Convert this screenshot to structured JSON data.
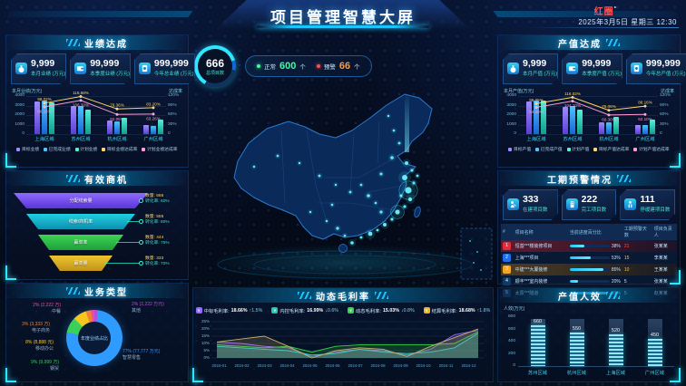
{
  "header": {
    "title": "项目管理智慧大屏",
    "logo": "红圈",
    "logo_sup": "°",
    "datetime": "2025年3月5日 星期三 12:30"
  },
  "overview": {
    "total": "666",
    "total_label": "总项目数",
    "normal_label": "正常",
    "normal_value": "600",
    "normal_unit": "个",
    "warning_label": "预警",
    "warning_value": "66",
    "warning_unit": "个"
  },
  "panels": {
    "performance": {
      "title": "业绩达成",
      "cards": [
        {
          "icon": "money-bag-icon",
          "value": "9,999",
          "label": "本月业绩 (万元)"
        },
        {
          "icon": "wallet-icon",
          "value": "99,999",
          "label": "本季度业绩 (万元)"
        },
        {
          "icon": "safe-icon",
          "value": "999,999",
          "label": "今年总业绩 (万元)"
        }
      ]
    },
    "opportunity": {
      "title": "有效商机"
    },
    "business": {
      "title": "业务类型"
    },
    "output": {
      "title": "产值达成",
      "cards": [
        {
          "icon": "money-bag-icon",
          "value": "9,999",
          "label": "本月产值 (万元)"
        },
        {
          "icon": "wallet-icon",
          "value": "99,999",
          "label": "本季度产值 (万元)"
        },
        {
          "icon": "safe-icon",
          "value": "999,999",
          "label": "今年总产值 (万元)"
        }
      ]
    },
    "schedule": {
      "title": "工期预警情况",
      "cards": [
        {
          "icon": "worker-icon",
          "value": "333",
          "label": "在建项目数"
        },
        {
          "icon": "building-icon",
          "value": "222",
          "label": "完工项目数"
        },
        {
          "icon": "pause-icon",
          "value": "111",
          "label": "停缓建项目数"
        }
      ],
      "table": {
        "headers": [
          "#",
          "项目名称",
          "当前进度百分比",
          "工期预警天数",
          "项目负责人"
        ],
        "rows": [
          {
            "no": "1",
            "name": "恒基***楼装修项目",
            "progress": 38,
            "progress_text": "38%",
            "days": "21",
            "owner": "张某某",
            "row_tint": "red",
            "no_color": "#e02e3d",
            "days_color": "#ff4d4f"
          },
          {
            "no": "2",
            "name": "上海***项目",
            "progress": 53,
            "progress_text": "53%",
            "days": "15",
            "owner": "李某某",
            "row_tint": "",
            "no_color": "#1f6feb",
            "days_color": "#ffc53d"
          },
          {
            "no": "3",
            "name": "中建***大厦装修",
            "progress": 85,
            "progress_text": "85%",
            "days": "10",
            "owner": "王某某",
            "row_tint": "yellow",
            "no_color": "#f5a623",
            "days_color": "#ffc53d"
          },
          {
            "no": "4",
            "name": "顺丰***室内装修",
            "progress": 20,
            "progress_text": "20%",
            "days": "5",
            "owner": "张某某",
            "row_tint": "",
            "no_color": "#123a66",
            "days_color": "#cfe9ff"
          },
          {
            "no": "5",
            "name": "太原***隧道",
            "progress": 91,
            "progress_text": "91%",
            "days": "5",
            "owner": "赵某某",
            "row_tint": "",
            "no_color": "#123a66",
            "days_color": "#cfe9ff"
          }
        ]
      }
    },
    "margin": {
      "title": "动态毛利率",
      "stats": [
        {
          "label": "中标毛利率",
          "value": "18.66%",
          "delta": "↑1.5%",
          "color": "#8f6bff"
        },
        {
          "label": "内控毛利率",
          "value": "16.99%",
          "delta": "↓0.6%",
          "color": "#27c5b4"
        },
        {
          "label": "动态毛利率",
          "value": "15.03%",
          "delta": "↓0.8%",
          "color": "#35d24a"
        },
        {
          "label": "结算毛利率",
          "value": "18.68%",
          "delta": "↑1.8%",
          "color": "#e8b729"
        }
      ]
    },
    "efficiency": {
      "title": "产值人效"
    }
  },
  "chart_data": [
    {
      "id": "performance",
      "type": "bar-line",
      "ylabel": "本月业绩(万元)",
      "y2label": "达成率",
      "categories": [
        "上海区域",
        "苏州区域",
        "杭州区域",
        "广州区域"
      ],
      "ylim": [
        0,
        4000
      ],
      "yticks": [
        "0",
        "1000",
        "2000",
        "3000",
        "4000"
      ],
      "y2lim": [
        0,
        120
      ],
      "y2ticks": [
        "0",
        "30%",
        "60%",
        "90%",
        "120%"
      ],
      "bar_series": [
        {
          "name": "目标业绩",
          "color1": "#9f8bff",
          "color2": "#5a3fd6",
          "values": [
            3400,
            2950,
            1400,
            1000
          ]
        },
        {
          "name": "已完成业绩",
          "color1": "#4fc3ff",
          "color2": "#1565d8",
          "values": [
            3500,
            3000,
            1300,
            900
          ]
        },
        {
          "name": "计划业绩",
          "color1": "#52f2d8",
          "color2": "#0f9e8c",
          "values": [
            3300,
            2600,
            1700,
            1500
          ]
        }
      ],
      "line_series": [
        {
          "name": "目标业绩达成率",
          "color": "#ffd666",
          "values": [
            98.02,
            118.68,
            79.36,
            83.2
          ],
          "labels": [
            "98.02%",
            "118.68%",
            "79.36%",
            "83.20%"
          ]
        },
        {
          "name": "计划业绩达成率",
          "color": "#ff9ad5",
          "values": [
            86.16,
            106.3,
            62.05,
            63.26
          ],
          "labels": [
            "86.16%",
            "106.30%",
            "62.05%",
            "63.26%"
          ]
        }
      ]
    },
    {
      "id": "output",
      "type": "bar-line",
      "ylabel": "本月产值(万元)",
      "y2label": "达成率",
      "categories": [
        "上海区域",
        "苏州区域",
        "杭州区域",
        "广州区域"
      ],
      "ylim": [
        0,
        4000
      ],
      "yticks": [
        "0",
        "1000",
        "2000",
        "3000",
        "4000"
      ],
      "y2lim": [
        0,
        120
      ],
      "y2ticks": [
        "0",
        "30%",
        "60%",
        "90%",
        "120%"
      ],
      "bar_series": [
        {
          "name": "目标产值",
          "color1": "#9f8bff",
          "color2": "#5a3fd6",
          "values": [
            3400,
            2900,
            1250,
            950
          ]
        },
        {
          "name": "已完成产值",
          "color1": "#4fc3ff",
          "color2": "#1565d8",
          "values": [
            3500,
            2950,
            1200,
            950
          ]
        },
        {
          "name": "计划产值",
          "color1": "#52f2d8",
          "color2": "#0f9e8c",
          "values": [
            3500,
            2550,
            1800,
            1500
          ]
        }
      ],
      "line_series": [
        {
          "name": "目标产值达成率",
          "color": "#ffd666",
          "values": [
            96.05,
            116.02,
            75.06,
            88.16
          ],
          "labels": [
            "96.05%",
            "116.02%",
            "75.06%",
            "88.16%"
          ]
        },
        {
          "name": "计划产值达成率",
          "color": "#ff9ad5",
          "values": [
            84.2,
            104.1,
            60.3,
            62.1
          ],
          "labels": [
            "84.20%",
            "104.10%",
            "60.30%",
            "62.10%"
          ]
        }
      ]
    },
    {
      "id": "opportunity_funnel",
      "type": "funnel",
      "items": [
        {
          "name": "分配线索量",
          "qty_label": "数量: 666",
          "rate_label": "转化率: 60%",
          "color1": "#8f6bff",
          "color2": "#5a35d8"
        },
        {
          "name": "线索/商机率",
          "qty_label": "数量: 555",
          "rate_label": "转化率: 80%",
          "color1": "#1fd0e0",
          "color2": "#0e8fb0"
        },
        {
          "name": "赢单率",
          "qty_label": "数量: 444",
          "rate_label": "转化率: 75%",
          "color1": "#3fd455",
          "color2": "#1da03a"
        },
        {
          "name": "赢单量",
          "qty_label": "数量: 333",
          "rate_label": "转化率: 70%",
          "color1": "#ecc52e",
          "color2": "#c2921a"
        }
      ]
    },
    {
      "id": "business_pie",
      "type": "pie",
      "center_label": "年度业绩占比",
      "slices": [
        {
          "name": "其他",
          "pct": 2,
          "label": "2% (2,222 万元)",
          "color": "#b44fd8"
        },
        {
          "name": "智慧零售",
          "pct": 77,
          "label": "77% (77,777 万元)",
          "color": "#2f9bff"
        },
        {
          "name": "钢贸",
          "pct": 9,
          "label": "9% (9,999 万)",
          "color": "#3ad05a"
        },
        {
          "name": "移动办公",
          "pct": 8,
          "label": "8% (8,888 元)",
          "color": "#f6c61c"
        },
        {
          "name": "电子商务",
          "pct": 3,
          "label": "3% (3,333 万)",
          "color": "#f0812e"
        },
        {
          "name": "中餐",
          "pct": 2,
          "label": "2% (2,222 万)",
          "color": "#e84f9e"
        }
      ]
    },
    {
      "id": "margin_trend",
      "type": "area",
      "x": [
        "2024-01",
        "2024-02",
        "2024-03",
        "2024-04",
        "2024-05",
        "2024-06",
        "2024-07",
        "2024-08",
        "2024-09",
        "2024-10",
        "2024-11",
        "2024-12"
      ],
      "ylim": [
        0,
        25
      ],
      "yticks": [
        "25%",
        "20%",
        "15%",
        "10%",
        "5%",
        "0%"
      ],
      "series": [
        {
          "name": "中标毛利率",
          "color": "#8f6bff",
          "values": [
            11,
            10,
            8,
            7,
            1,
            4,
            6,
            5,
            2,
            6,
            16,
            19
          ]
        },
        {
          "name": "内控毛利率",
          "color": "#2ad0ff",
          "values": [
            8,
            7,
            6,
            5,
            2,
            3,
            6,
            4,
            3,
            4,
            7,
            17
          ]
        },
        {
          "name": "动态毛利率",
          "color": "#35d24a",
          "values": [
            9,
            8,
            7,
            8,
            4,
            8,
            9,
            9,
            9,
            9,
            10,
            18
          ]
        },
        {
          "name": "结算毛利率",
          "color": "#c8b06a",
          "values": [
            11,
            13,
            15,
            8,
            0,
            5,
            7,
            6,
            1,
            8,
            14,
            20
          ]
        }
      ]
    },
    {
      "id": "efficiency",
      "type": "bar",
      "ylabel": "人效(万元)",
      "categories": [
        "苏州区域",
        "杭州区域",
        "上海区域",
        "广州区域"
      ],
      "values": [
        660,
        550,
        520,
        450
      ],
      "value_labels": [
        "660",
        "550",
        "520",
        "450"
      ],
      "ylim": [
        0,
        800
      ],
      "yticks": [
        "0",
        "200",
        "400",
        "600",
        "800"
      ]
    }
  ],
  "map": {
    "points": [
      {
        "x": 238,
        "y": 96,
        "r": 2
      },
      {
        "x": 244,
        "y": 104,
        "r": 1.6
      },
      {
        "x": 236,
        "y": 112,
        "r": 3
      },
      {
        "x": 246,
        "y": 118,
        "r": 1.6
      },
      {
        "x": 240,
        "y": 126,
        "r": 3.6,
        "ring": true
      },
      {
        "x": 232,
        "y": 132,
        "r": 1.6
      },
      {
        "x": 242,
        "y": 136,
        "r": 2.2
      },
      {
        "x": 236,
        "y": 144,
        "r": 1.6
      },
      {
        "x": 228,
        "y": 150,
        "r": 2.6,
        "ring": true
      },
      {
        "x": 222,
        "y": 158,
        "r": 1.6
      },
      {
        "x": 214,
        "y": 164,
        "r": 2
      },
      {
        "x": 206,
        "y": 170,
        "r": 1.4
      },
      {
        "x": 198,
        "y": 174,
        "r": 2.4
      },
      {
        "x": 188,
        "y": 178,
        "r": 1.4
      },
      {
        "x": 178,
        "y": 184,
        "r": 1.8
      },
      {
        "x": 170,
        "y": 176,
        "r": 1.3
      },
      {
        "x": 162,
        "y": 168,
        "r": 1.6
      },
      {
        "x": 150,
        "y": 160,
        "r": 1.2
      },
      {
        "x": 210,
        "y": 150,
        "r": 1.6
      },
      {
        "x": 204,
        "y": 140,
        "r": 1.3
      },
      {
        "x": 196,
        "y": 132,
        "r": 1.8
      },
      {
        "x": 188,
        "y": 120,
        "r": 1.3
      },
      {
        "x": 176,
        "y": 128,
        "r": 1.4
      },
      {
        "x": 160,
        "y": 120,
        "r": 1.2
      },
      {
        "x": 142,
        "y": 110,
        "r": 1.4
      },
      {
        "x": 120,
        "y": 96,
        "r": 1.2
      },
      {
        "x": 96,
        "y": 88,
        "r": 1.3
      },
      {
        "x": 70,
        "y": 100,
        "r": 1.2
      },
      {
        "x": 210,
        "y": 108,
        "r": 1.5
      },
      {
        "x": 222,
        "y": 90,
        "r": 1.8
      },
      {
        "x": 230,
        "y": 74,
        "r": 1.4
      },
      {
        "x": 224,
        "y": 60,
        "r": 1.3
      },
      {
        "x": 218,
        "y": 44,
        "r": 1.2
      },
      {
        "x": 156,
        "y": 142,
        "r": 1.3
      },
      {
        "x": 132,
        "y": 150,
        "r": 1.2
      },
      {
        "x": 250,
        "y": 110,
        "r": 1.4
      }
    ]
  }
}
